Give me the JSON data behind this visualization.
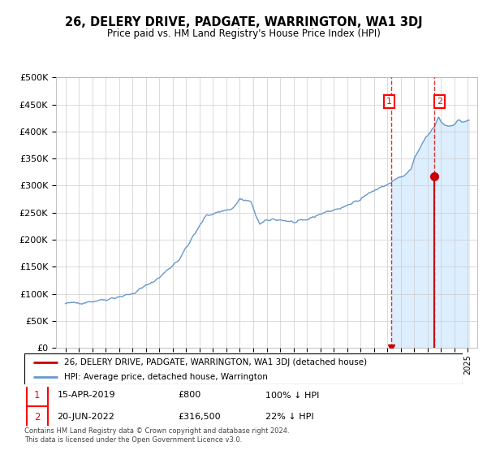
{
  "title": "26, DELERY DRIVE, PADGATE, WARRINGTON, WA1 3DJ",
  "subtitle": "Price paid vs. HM Land Registry's House Price Index (HPI)",
  "ylim": [
    0,
    500000
  ],
  "yticks": [
    0,
    50000,
    100000,
    150000,
    200000,
    250000,
    300000,
    350000,
    400000,
    450000,
    500000
  ],
  "sale1_date": 2019.29,
  "sale1_price": 800,
  "sale2_date": 2022.47,
  "sale2_price": 316500,
  "legend_property": "26, DELERY DRIVE, PADGATE, WARRINGTON, WA1 3DJ (detached house)",
  "legend_hpi": "HPI: Average price, detached house, Warrington",
  "footer": "Contains HM Land Registry data © Crown copyright and database right 2024.\nThis data is licensed under the Open Government Licence v3.0.",
  "hpi_color": "#6699cc",
  "sale_color": "#cc0000",
  "shading_color": "#ddeeff",
  "anchor_years": [
    1995.0,
    1996.5,
    1998.0,
    2000.0,
    2002.0,
    2003.5,
    2004.5,
    2005.5,
    2006.5,
    2007.5,
    2008.0,
    2008.8,
    2009.5,
    2010.0,
    2010.5,
    2011.0,
    2011.5,
    2012.0,
    2012.5,
    2013.0,
    2014.0,
    2015.0,
    2016.0,
    2017.0,
    2018.0,
    2018.5,
    2019.0,
    2019.5,
    2020.0,
    2020.3,
    2020.8,
    2021.0,
    2021.3,
    2021.6,
    2021.9,
    2022.2,
    2022.5,
    2022.8,
    2023.0,
    2023.3,
    2023.6,
    2024.0,
    2024.3,
    2024.6,
    2025.0
  ],
  "anchor_prices": [
    82000,
    85000,
    90000,
    100000,
    130000,
    165000,
    205000,
    245000,
    252000,
    258000,
    275000,
    270000,
    228000,
    235000,
    238000,
    237000,
    235000,
    232000,
    233000,
    237000,
    248000,
    255000,
    262000,
    277000,
    291000,
    296000,
    302000,
    310000,
    316000,
    318000,
    332000,
    348000,
    362000,
    378000,
    390000,
    398000,
    408000,
    428000,
    418000,
    412000,
    410000,
    415000,
    420000,
    418000,
    420000
  ]
}
